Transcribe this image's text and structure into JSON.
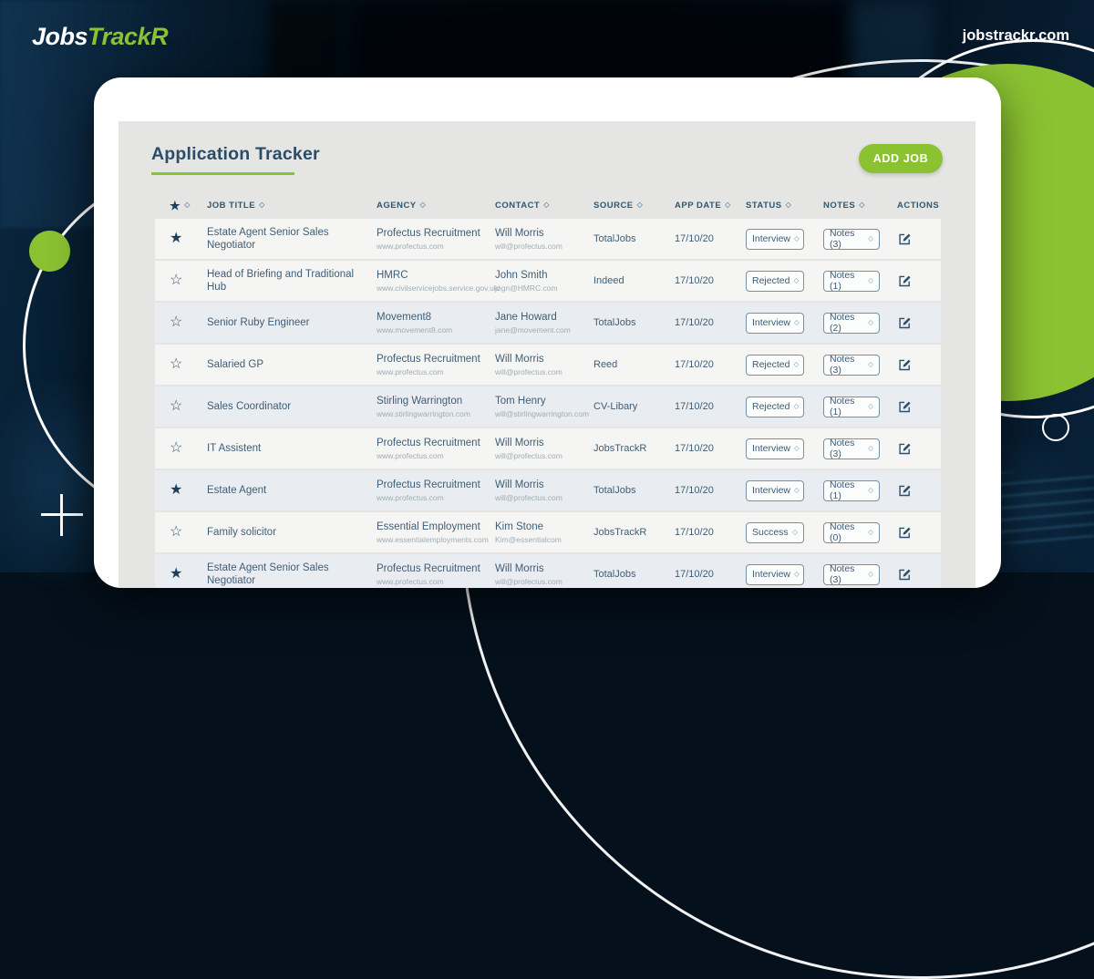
{
  "brand": {
    "name_primary": "Jobs",
    "name_secondary": "TrackR",
    "website": "jobstrackr.com"
  },
  "colors": {
    "accent_green": "#8bc232",
    "navy_text": "#2b4c66",
    "dark_background": "#04101b",
    "row_light": "#f5f6f4",
    "row_blue": "#e9edf1"
  },
  "tracker": {
    "title": "Application Tracker",
    "add_job_button": "ADD JOB",
    "sort_glyph": "◇",
    "columns": [
      {
        "key": "favorite",
        "label": "",
        "icon": "star",
        "sortable": true
      },
      {
        "key": "job_title",
        "label": "JOB TITLE",
        "sortable": true
      },
      {
        "key": "agency",
        "label": "AGENCY",
        "sortable": true
      },
      {
        "key": "contact",
        "label": "CONTACT",
        "sortable": true
      },
      {
        "key": "source",
        "label": "SOURCE",
        "sortable": true
      },
      {
        "key": "app_date",
        "label": "APP DATE",
        "sortable": true
      },
      {
        "key": "status",
        "label": "STATUS",
        "sortable": true
      },
      {
        "key": "notes",
        "label": "NOTES",
        "sortable": true
      },
      {
        "key": "actions",
        "label": "ACTIONS",
        "sortable": false
      }
    ],
    "rows": [
      {
        "favorite": true,
        "job_title": "Estate Agent Senior Sales Negotiator",
        "agency": "Profectus Recruitment",
        "agency_url": "www.profectus.com",
        "contact": "Will Morris",
        "contact_email": "will@profectus.com",
        "source": "TotalJobs",
        "app_date": "17/10/20",
        "status": "Interview",
        "notes": "Notes (3)",
        "shade": "light"
      },
      {
        "favorite": false,
        "job_title": "Head of Briefing and Traditional Hub",
        "agency": "HMRC",
        "agency_url": "www.civilservicejobs.service.gov.uk/",
        "contact": "John Smith",
        "contact_email": "jogn@HMRC.com",
        "source": "Indeed",
        "app_date": "17/10/20",
        "status": "Rejected",
        "notes": "Notes (1)",
        "shade": "light"
      },
      {
        "favorite": false,
        "job_title": "Senior Ruby Engineer",
        "agency": "Movement8",
        "agency_url": "www.movement8.com",
        "contact": "Jane Howard",
        "contact_email": "jane@movement.com",
        "source": "TotalJobs",
        "app_date": "17/10/20",
        "status": "Interview",
        "notes": "Notes (2)",
        "shade": "blue"
      },
      {
        "favorite": false,
        "job_title": "Salaried GP",
        "agency": "Profectus Recruitment",
        "agency_url": "www.profectus.com",
        "contact": "Will Morris",
        "contact_email": "will@profectus.com",
        "source": "Reed",
        "app_date": "17/10/20",
        "status": "Rejected",
        "notes": "Notes (3)",
        "shade": "light"
      },
      {
        "favorite": false,
        "job_title": "Sales Coordinator",
        "agency": "Stirling Warrington",
        "agency_url": "www.stirlingwarrington.com",
        "contact": "Tom Henry",
        "contact_email": "will@stirlingwarrington.com",
        "source": "CV-Libary",
        "app_date": "17/10/20",
        "status": "Rejected",
        "notes": "Notes (1)",
        "shade": "blue"
      },
      {
        "favorite": false,
        "job_title": "IT Assistent",
        "agency": "Profectus Recruitment",
        "agency_url": "www.profectus.com",
        "contact": "Will Morris",
        "contact_email": "will@profectus.com",
        "source": "JobsTrackR",
        "app_date": "17/10/20",
        "status": "Interview",
        "notes": "Notes (3)",
        "shade": "light"
      },
      {
        "favorite": true,
        "job_title": "Estate Agent",
        "agency": "Profectus Recruitment",
        "agency_url": "www.profectus.com",
        "contact": "Will Morris",
        "contact_email": "will@profectus.com",
        "source": "TotalJobs",
        "app_date": "17/10/20",
        "status": "Interview",
        "notes": "Notes (1)",
        "shade": "blue"
      },
      {
        "favorite": false,
        "job_title": "Family solicitor",
        "agency": "Essential Employment",
        "agency_url": "www.essentialemployments.com",
        "contact": "Kim Stone",
        "contact_email": "Kim@essentialcom",
        "source": "JobsTrackR",
        "app_date": "17/10/20",
        "status": "Success",
        "notes": "Notes (0)",
        "shade": "light"
      },
      {
        "favorite": true,
        "job_title": "Estate Agent Senior Sales Negotiator",
        "agency": "Profectus Recruitment",
        "agency_url": "www.profectus.com",
        "contact": "Will Morris",
        "contact_email": "will@profectus.com",
        "source": "TotalJobs",
        "app_date": "17/10/20",
        "status": "Interview",
        "notes": "Notes (3)",
        "shade": "blue"
      }
    ]
  }
}
